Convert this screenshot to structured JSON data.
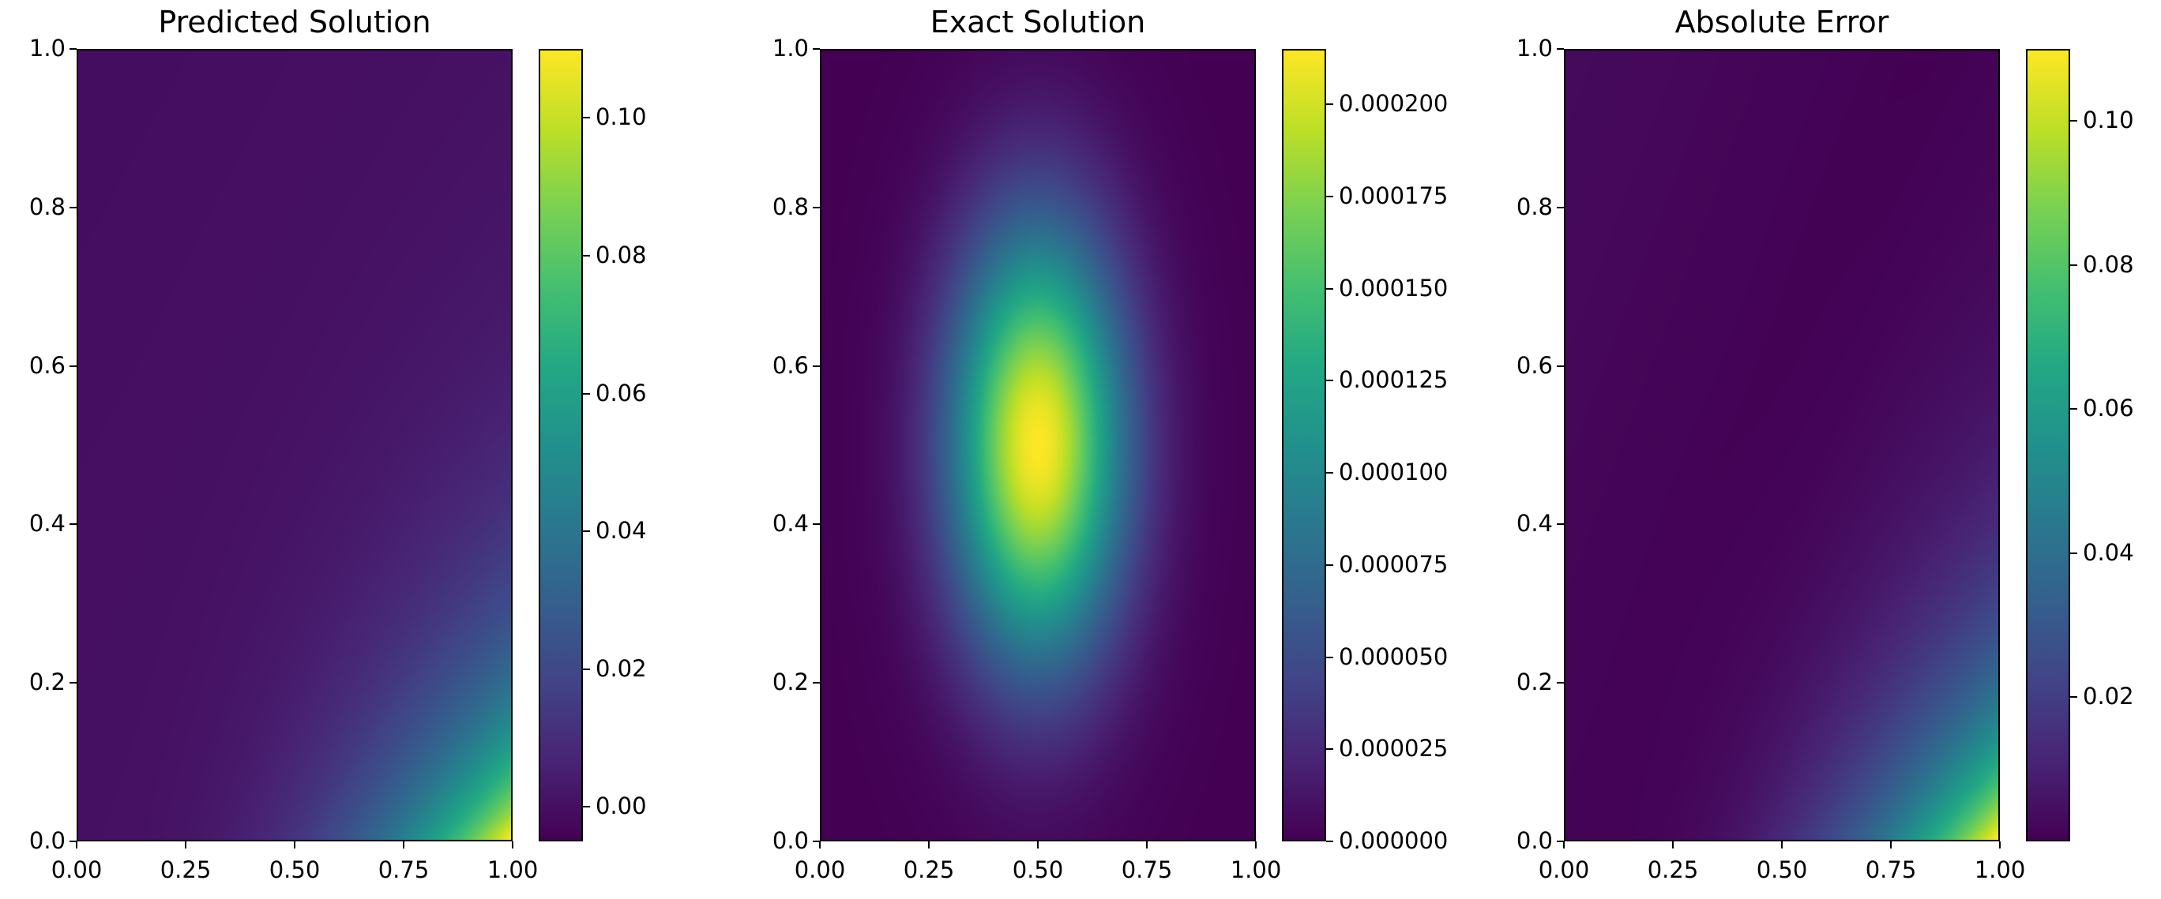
{
  "chart_data": [
    {
      "type": "heatmap",
      "title": "Predicted Solution",
      "xlim": [
        0,
        1
      ],
      "ylim": [
        0,
        1
      ],
      "x_ticks": [
        "0.00",
        "0.25",
        "0.50",
        "0.75",
        "1.00"
      ],
      "y_ticks": [
        "0.0",
        "0.2",
        "0.4",
        "0.6",
        "0.8",
        "1.0"
      ],
      "colorbar": {
        "colormap": "viridis",
        "vmin": -0.005,
        "vmax": 0.11,
        "ticks": [
          {
            "v": 0.0,
            "label": "0.00"
          },
          {
            "v": 0.02,
            "label": "0.02"
          },
          {
            "v": 0.04,
            "label": "0.04"
          },
          {
            "v": 0.06,
            "label": "0.06"
          },
          {
            "v": 0.08,
            "label": "0.08"
          },
          {
            "v": 0.1,
            "label": "0.10"
          }
        ]
      },
      "field": "predicted"
    },
    {
      "type": "heatmap",
      "title": "Exact Solution",
      "xlim": [
        0,
        1
      ],
      "ylim": [
        0,
        1
      ],
      "x_ticks": [
        "0.00",
        "0.25",
        "0.50",
        "0.75",
        "1.00"
      ],
      "y_ticks": [
        "0.0",
        "0.2",
        "0.4",
        "0.6",
        "0.8",
        "1.0"
      ],
      "colorbar": {
        "colormap": "viridis",
        "vmin": 0.0,
        "vmax": 0.000215,
        "ticks": [
          {
            "v": 0.0,
            "label": "0.000000"
          },
          {
            "v": 2.5e-05,
            "label": "0.000025"
          },
          {
            "v": 5e-05,
            "label": "0.000050"
          },
          {
            "v": 7.5e-05,
            "label": "0.000075"
          },
          {
            "v": 0.0001,
            "label": "0.000100"
          },
          {
            "v": 0.000125,
            "label": "0.000125"
          },
          {
            "v": 0.00015,
            "label": "0.000150"
          },
          {
            "v": 0.000175,
            "label": "0.000175"
          },
          {
            "v": 0.0002,
            "label": "0.000200"
          }
        ]
      },
      "field": "exact"
    },
    {
      "type": "heatmap",
      "title": "Absolute Error",
      "xlim": [
        0,
        1
      ],
      "ylim": [
        0,
        1
      ],
      "x_ticks": [
        "0.00",
        "0.25",
        "0.50",
        "0.75",
        "1.00"
      ],
      "y_ticks": [
        "0.0",
        "0.2",
        "0.4",
        "0.6",
        "0.8",
        "1.0"
      ],
      "colorbar": {
        "colormap": "viridis",
        "vmin": 0.0,
        "vmax": 0.11,
        "ticks": [
          {
            "v": 0.02,
            "label": "0.02"
          },
          {
            "v": 0.04,
            "label": "0.04"
          },
          {
            "v": 0.06,
            "label": "0.06"
          },
          {
            "v": 0.08,
            "label": "0.08"
          },
          {
            "v": 0.1,
            "label": "0.10"
          }
        ]
      },
      "field": "error"
    }
  ]
}
